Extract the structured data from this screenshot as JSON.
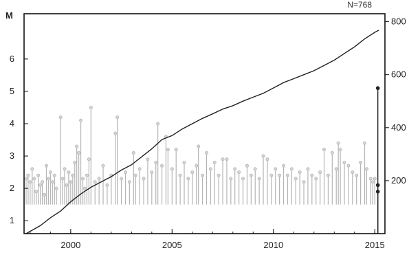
{
  "chart_data": {
    "type": "lollipop-with-cumulative-line",
    "title": "",
    "annotation": "N=768",
    "y_left": {
      "label": "M",
      "range": [
        0.6,
        7.4
      ],
      "ticks": [
        "1",
        "2",
        "3",
        "4",
        "5",
        "6"
      ]
    },
    "y_right": {
      "label": "",
      "range": [
        0,
        830
      ],
      "ticks": [
        "200",
        "400",
        "600",
        "800"
      ]
    },
    "x": {
      "label": "",
      "range": [
        1997.7,
        2015.5
      ],
      "ticks": [
        "2000",
        "2005",
        "2010",
        "2015"
      ]
    },
    "stem_color": "#b4b4b4",
    "line_color": "#222222",
    "highlight_color": "#222222",
    "baseline_M": 1.5,
    "events": [
      {
        "t": 1997.8,
        "m": 2.3
      },
      {
        "t": 1997.9,
        "m": 2.4
      },
      {
        "t": 1998.0,
        "m": 2.2
      },
      {
        "t": 1998.1,
        "m": 2.6
      },
      {
        "t": 1998.2,
        "m": 2.3
      },
      {
        "t": 1998.3,
        "m": 1.9
      },
      {
        "t": 1998.4,
        "m": 2.4
      },
      {
        "t": 1998.5,
        "m": 2.1
      },
      {
        "t": 1998.6,
        "m": 2.2
      },
      {
        "t": 1998.7,
        "m": 1.8
      },
      {
        "t": 1998.8,
        "m": 2.7
      },
      {
        "t": 1998.9,
        "m": 2.3
      },
      {
        "t": 1999.0,
        "m": 2.5
      },
      {
        "t": 1999.1,
        "m": 2.2
      },
      {
        "t": 1999.2,
        "m": 2.4
      },
      {
        "t": 1999.3,
        "m": 2.0
      },
      {
        "t": 1999.5,
        "m": 4.2
      },
      {
        "t": 1999.6,
        "m": 2.3
      },
      {
        "t": 1999.7,
        "m": 2.6
      },
      {
        "t": 1999.8,
        "m": 2.1
      },
      {
        "t": 1999.9,
        "m": 2.5
      },
      {
        "t": 2000.0,
        "m": 2.2
      },
      {
        "t": 2000.1,
        "m": 2.4
      },
      {
        "t": 2000.2,
        "m": 2.8
      },
      {
        "t": 2000.3,
        "m": 3.3
      },
      {
        "t": 2000.4,
        "m": 3.1
      },
      {
        "t": 2000.5,
        "m": 4.1
      },
      {
        "t": 2000.6,
        "m": 2.3
      },
      {
        "t": 2000.7,
        "m": 2.0
      },
      {
        "t": 2000.8,
        "m": 2.4
      },
      {
        "t": 2000.9,
        "m": 2.9
      },
      {
        "t": 2001.0,
        "m": 4.5
      },
      {
        "t": 2001.2,
        "m": 2.2
      },
      {
        "t": 2001.4,
        "m": 2.3
      },
      {
        "t": 2001.6,
        "m": 2.7
      },
      {
        "t": 2001.8,
        "m": 2.1
      },
      {
        "t": 2002.0,
        "m": 2.4
      },
      {
        "t": 2002.2,
        "m": 3.7
      },
      {
        "t": 2002.3,
        "m": 4.2
      },
      {
        "t": 2002.5,
        "m": 2.3
      },
      {
        "t": 2002.7,
        "m": 2.5
      },
      {
        "t": 2002.9,
        "m": 2.2
      },
      {
        "t": 2003.1,
        "m": 3.1
      },
      {
        "t": 2003.2,
        "m": 2.4
      },
      {
        "t": 2003.4,
        "m": 2.6
      },
      {
        "t": 2003.6,
        "m": 2.3
      },
      {
        "t": 2003.8,
        "m": 2.9
      },
      {
        "t": 2004.0,
        "m": 2.5
      },
      {
        "t": 2004.2,
        "m": 2.8
      },
      {
        "t": 2004.3,
        "m": 4.0
      },
      {
        "t": 2004.5,
        "m": 2.7
      },
      {
        "t": 2004.7,
        "m": 3.6
      },
      {
        "t": 2004.8,
        "m": 3.2
      },
      {
        "t": 2005.0,
        "m": 2.6
      },
      {
        "t": 2005.2,
        "m": 3.2
      },
      {
        "t": 2005.4,
        "m": 2.4
      },
      {
        "t": 2005.6,
        "m": 2.8
      },
      {
        "t": 2005.8,
        "m": 2.3
      },
      {
        "t": 2006.0,
        "m": 2.5
      },
      {
        "t": 2006.2,
        "m": 2.7
      },
      {
        "t": 2006.3,
        "m": 3.3
      },
      {
        "t": 2006.5,
        "m": 2.4
      },
      {
        "t": 2006.7,
        "m": 3.1
      },
      {
        "t": 2006.9,
        "m": 2.6
      },
      {
        "t": 2007.1,
        "m": 2.8
      },
      {
        "t": 2007.3,
        "m": 2.4
      },
      {
        "t": 2007.5,
        "m": 2.9
      },
      {
        "t": 2007.7,
        "m": 2.9
      },
      {
        "t": 2007.9,
        "m": 2.3
      },
      {
        "t": 2008.1,
        "m": 2.6
      },
      {
        "t": 2008.3,
        "m": 2.5
      },
      {
        "t": 2008.5,
        "m": 2.3
      },
      {
        "t": 2008.7,
        "m": 2.7
      },
      {
        "t": 2008.9,
        "m": 2.4
      },
      {
        "t": 2009.1,
        "m": 2.6
      },
      {
        "t": 2009.3,
        "m": 2.3
      },
      {
        "t": 2009.5,
        "m": 3.0
      },
      {
        "t": 2009.7,
        "m": 2.9
      },
      {
        "t": 2009.9,
        "m": 2.4
      },
      {
        "t": 2010.1,
        "m": 2.6
      },
      {
        "t": 2010.3,
        "m": 2.4
      },
      {
        "t": 2010.5,
        "m": 2.7
      },
      {
        "t": 2010.7,
        "m": 2.4
      },
      {
        "t": 2010.9,
        "m": 2.6
      },
      {
        "t": 2011.1,
        "m": 2.3
      },
      {
        "t": 2011.3,
        "m": 2.5
      },
      {
        "t": 2011.5,
        "m": 2.2
      },
      {
        "t": 2011.7,
        "m": 2.6
      },
      {
        "t": 2011.9,
        "m": 2.4
      },
      {
        "t": 2012.1,
        "m": 2.3
      },
      {
        "t": 2012.3,
        "m": 2.5
      },
      {
        "t": 2012.5,
        "m": 3.2
      },
      {
        "t": 2012.7,
        "m": 2.4
      },
      {
        "t": 2012.9,
        "m": 3.1
      },
      {
        "t": 2013.1,
        "m": 2.6
      },
      {
        "t": 2013.2,
        "m": 3.4
      },
      {
        "t": 2013.3,
        "m": 3.2
      },
      {
        "t": 2013.5,
        "m": 2.8
      },
      {
        "t": 2013.7,
        "m": 2.7
      },
      {
        "t": 2013.9,
        "m": 2.5
      },
      {
        "t": 2014.1,
        "m": 2.4
      },
      {
        "t": 2014.3,
        "m": 2.8
      },
      {
        "t": 2014.5,
        "m": 3.4
      },
      {
        "t": 2014.6,
        "m": 2.6
      },
      {
        "t": 2014.8,
        "m": 2.3
      },
      {
        "t": 2014.9,
        "m": 2.2
      },
      {
        "t": 2015.0,
        "m": 2.3
      },
      {
        "t": 2015.15,
        "m": 5.1,
        "highlight": true
      },
      {
        "t": 2015.15,
        "m": 2.1,
        "highlight": true
      },
      {
        "t": 2015.15,
        "m": 1.9,
        "highlight": true
      }
    ],
    "cumulative": [
      {
        "t": 1997.8,
        "n": 0
      },
      {
        "t": 1998.5,
        "n": 30
      },
      {
        "t": 1999.0,
        "n": 60
      },
      {
        "t": 1999.5,
        "n": 85
      },
      {
        "t": 2000.0,
        "n": 120
      },
      {
        "t": 2000.5,
        "n": 150
      },
      {
        "t": 2001.0,
        "n": 175
      },
      {
        "t": 2001.5,
        "n": 195
      },
      {
        "t": 2002.0,
        "n": 215
      },
      {
        "t": 2002.5,
        "n": 240
      },
      {
        "t": 2003.0,
        "n": 260
      },
      {
        "t": 2003.5,
        "n": 290
      },
      {
        "t": 2004.0,
        "n": 320
      },
      {
        "t": 2004.5,
        "n": 355
      },
      {
        "t": 2005.0,
        "n": 370
      },
      {
        "t": 2005.5,
        "n": 395
      },
      {
        "t": 2006.0,
        "n": 415
      },
      {
        "t": 2006.5,
        "n": 435
      },
      {
        "t": 2007.0,
        "n": 452
      },
      {
        "t": 2007.5,
        "n": 470
      },
      {
        "t": 2008.0,
        "n": 483
      },
      {
        "t": 2008.5,
        "n": 500
      },
      {
        "t": 2009.0,
        "n": 515
      },
      {
        "t": 2009.5,
        "n": 530
      },
      {
        "t": 2010.0,
        "n": 550
      },
      {
        "t": 2010.5,
        "n": 570
      },
      {
        "t": 2011.0,
        "n": 585
      },
      {
        "t": 2011.5,
        "n": 600
      },
      {
        "t": 2012.0,
        "n": 615
      },
      {
        "t": 2012.5,
        "n": 635
      },
      {
        "t": 2013.0,
        "n": 655
      },
      {
        "t": 2013.5,
        "n": 680
      },
      {
        "t": 2014.0,
        "n": 705
      },
      {
        "t": 2014.5,
        "n": 735
      },
      {
        "t": 2015.0,
        "n": 760
      },
      {
        "t": 2015.2,
        "n": 768
      }
    ]
  }
}
